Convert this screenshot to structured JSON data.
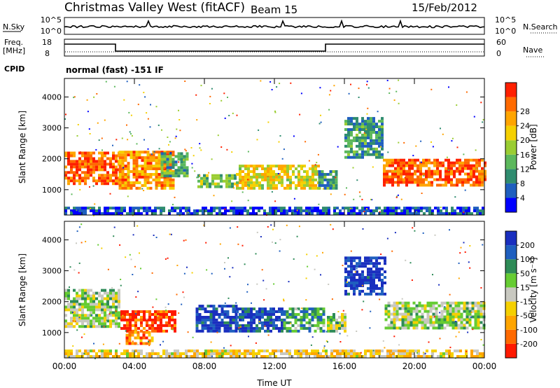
{
  "header": {
    "station": "Christmas Valley West (fitACF)",
    "beam": "Beam 15",
    "date": "15/Feb/2012"
  },
  "top_panels": {
    "nsky_label": "N.Sky",
    "nsearch_label": "N.Search",
    "nsky_ticks": [
      "10^5",
      "10^0"
    ],
    "nsearch_ticks": [
      "10^5",
      "10^0"
    ],
    "freq_label_1": "Freq.",
    "freq_label_2": "[MHz]",
    "freq_ticks": [
      "18",
      "8"
    ],
    "nave_label": "Nave",
    "nave_ticks": [
      "60",
      "0"
    ],
    "cpid_label": "CPID",
    "cpid_text": "normal (fast) -151 IF"
  },
  "chart_data": [
    {
      "type": "heatmap",
      "name": "power",
      "ylabel": "Slant Range [km]",
      "xlabel": "Time UT",
      "ylim": [
        180,
        4600
      ],
      "yticks": [
        "1000",
        "2000",
        "3000",
        "4000"
      ],
      "xticks": [
        "00:00",
        "04:00",
        "08:00",
        "12:00",
        "16:00",
        "20:00",
        "00:00"
      ],
      "colorbar": {
        "label": "Power [dB]",
        "ticks": [
          "4",
          "8",
          "12",
          "16",
          "20",
          "24",
          "28"
        ],
        "colors": [
          "#0000ff",
          "#1f5fbf",
          "#2f8c6f",
          "#5cb85c",
          "#9acd32",
          "#f5d000",
          "#ffa500",
          "#ff6a00",
          "#ff2000"
        ]
      },
      "regions": [
        {
          "t0": 0.0,
          "t1": 3.1,
          "r0": 1150,
          "r1": 2150,
          "level": 0.85
        },
        {
          "t0": 3.1,
          "t1": 6.2,
          "r0": 1000,
          "r1": 2200,
          "level": 0.75
        },
        {
          "t0": 5.5,
          "t1": 7.0,
          "r0": 1400,
          "r1": 2200,
          "level": 0.35
        },
        {
          "t0": 7.6,
          "t1": 9.8,
          "r0": 1050,
          "r1": 1500,
          "level": 0.4
        },
        {
          "t0": 9.8,
          "t1": 14.5,
          "r0": 1000,
          "r1": 1750,
          "level": 0.6
        },
        {
          "t0": 14.5,
          "t1": 15.5,
          "r0": 1000,
          "r1": 1600,
          "level": 0.3
        },
        {
          "t0": 16.0,
          "t1": 18.2,
          "r0": 2000,
          "r1": 3300,
          "level": 0.3
        },
        {
          "t0": 18.2,
          "t1": 24.0,
          "r0": 1100,
          "r1": 2000,
          "level": 0.85
        },
        {
          "t0": 0.0,
          "t1": 24.0,
          "r0": 180,
          "r1": 380,
          "level": 0.15
        }
      ]
    },
    {
      "type": "heatmap",
      "name": "velocity",
      "ylabel": "Slant Range [km]",
      "xlabel": "Time UT",
      "ylim": [
        180,
        4600
      ],
      "yticks": [
        "1000",
        "2000",
        "3000",
        "4000"
      ],
      "xticks": [
        "00:00",
        "04:00",
        "08:00",
        "12:00",
        "16:00",
        "20:00",
        "00:00"
      ],
      "colorbar": {
        "label": "Velocity [m s⁻¹]",
        "ticks": [
          "200",
          "100",
          "50",
          "15",
          "-15",
          "-50",
          "-100",
          "-200"
        ],
        "colors": [
          "#1a2fbf",
          "#1f5fbf",
          "#2e8b57",
          "#66cc33",
          "#c8c8c0",
          "#f5d000",
          "#ffa500",
          "#ff6a00",
          "#ff1a00"
        ]
      },
      "regions": [
        {
          "t0": 0.0,
          "t1": 3.1,
          "r0": 1150,
          "r1": 2350,
          "level": 0.45
        },
        {
          "t0": 3.2,
          "t1": 6.4,
          "r0": 1000,
          "r1": 1700,
          "level": 0.92
        },
        {
          "t0": 3.5,
          "t1": 5.0,
          "r0": 600,
          "r1": 1000,
          "level": 0.78
        },
        {
          "t0": 7.5,
          "t1": 9.8,
          "r0": 1000,
          "r1": 1900,
          "level": 0.08
        },
        {
          "t0": 9.8,
          "t1": 12.5,
          "r0": 1000,
          "r1": 1800,
          "level": 0.12
        },
        {
          "t0": 12.5,
          "t1": 14.8,
          "r0": 1000,
          "r1": 1800,
          "level": 0.3
        },
        {
          "t0": 15.0,
          "t1": 16.0,
          "r0": 1000,
          "r1": 1600,
          "level": 0.45
        },
        {
          "t0": 16.0,
          "t1": 18.3,
          "r0": 2200,
          "r1": 3400,
          "level": 0.05
        },
        {
          "t0": 18.3,
          "t1": 24.0,
          "r0": 1100,
          "r1": 2000,
          "level": 0.45
        },
        {
          "t0": 0.0,
          "t1": 24.0,
          "r0": 180,
          "r1": 380,
          "level": 0.6
        }
      ]
    }
  ]
}
